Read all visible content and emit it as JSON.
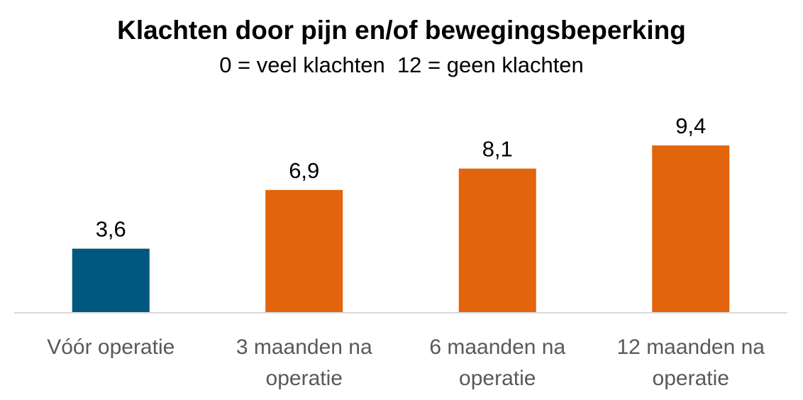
{
  "chart_data": {
    "type": "bar",
    "title": "Klachten door pijn en/of bewegingsbeperking",
    "subtitle": "0 = veel klachten  12 = geen klachten",
    "xlabel": "",
    "ylabel": "",
    "categories": [
      [
        "Vóór operatie"
      ],
      [
        "3 maanden na",
        "operatie"
      ],
      [
        "6 maanden na",
        "operatie"
      ],
      [
        "12 maanden na",
        "operatie"
      ]
    ],
    "values": [
      3.6,
      6.9,
      8.1,
      9.4
    ],
    "value_labels": [
      "3,6",
      "6,9",
      "8,1",
      "9,4"
    ],
    "bar_colors": [
      "#00577f",
      "#e2640c",
      "#e2640c",
      "#e2640c"
    ],
    "axis_color": "#d9d9d9",
    "ylim": [
      0,
      12
    ],
    "grid": false,
    "legend": "none"
  }
}
